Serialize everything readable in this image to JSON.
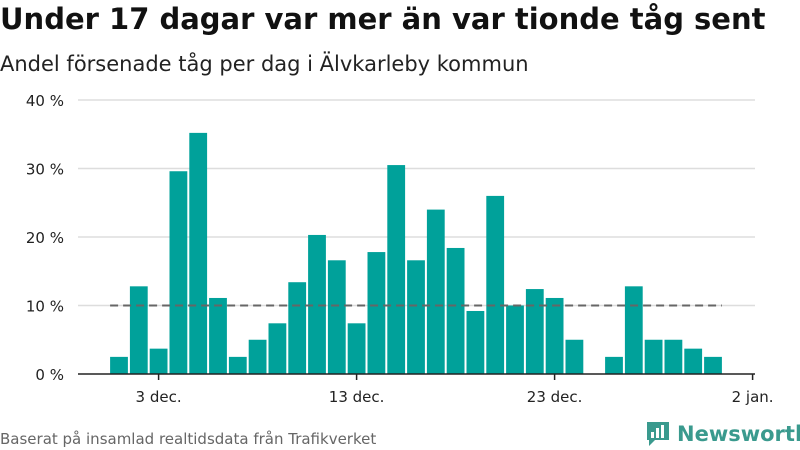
{
  "header": {
    "title": "Under 17 dagar var mer än var tionde tåg sent",
    "subtitle": "Andel försenade tåg per dag i Älvkarleby kommun"
  },
  "footer": {
    "source": "Baserat på insamlad realtidsdata från Trafikverket",
    "brand": "Newsworthy"
  },
  "colors": {
    "bar": "#00a19a",
    "reference_line": "#666666",
    "grid": "#dddddd",
    "axis": "#222222",
    "brand": "#3a9a8e"
  },
  "chart_data": {
    "type": "bar",
    "title": "Under 17 dagar var mer än var tionde tåg sent",
    "subtitle": "Andel försenade tåg per dag i Älvkarleby kommun",
    "xlabel": "",
    "ylabel": "",
    "x": [
      "2018-12-01",
      "2018-12-02",
      "2018-12-03",
      "2018-12-04",
      "2018-12-05",
      "2018-12-06",
      "2018-12-07",
      "2018-12-08",
      "2018-12-09",
      "2018-12-10",
      "2018-12-11",
      "2018-12-12",
      "2018-12-13",
      "2018-12-14",
      "2018-12-15",
      "2018-12-16",
      "2018-12-17",
      "2018-12-18",
      "2018-12-19",
      "2018-12-20",
      "2018-12-21",
      "2018-12-22",
      "2018-12-23",
      "2018-12-24",
      "2018-12-25",
      "2018-12-26",
      "2018-12-27",
      "2018-12-28",
      "2018-12-29",
      "2018-12-30",
      "2018-12-31"
    ],
    "values": [
      2.5,
      12.8,
      3.7,
      29.6,
      35.2,
      11.1,
      2.5,
      5.0,
      7.4,
      13.4,
      20.3,
      16.6,
      7.4,
      17.8,
      30.5,
      16.6,
      24.0,
      18.4,
      9.2,
      26.0,
      10.0,
      12.4,
      11.1,
      5.0,
      0,
      2.5,
      12.8,
      5.0,
      5.0,
      3.7,
      2.5
    ],
    "reference_line": {
      "value": 10
    },
    "ylim": [
      0,
      40
    ],
    "yticks": [
      0,
      10,
      20,
      30,
      40
    ],
    "ytick_labels": [
      "0 %",
      "10 %",
      "20 %",
      "30 %",
      "40 %"
    ],
    "xticks": [
      {
        "date": "2018-12-03",
        "label": "3 dec."
      },
      {
        "date": "2018-12-13",
        "label": "13 dec."
      },
      {
        "date": "2018-12-23",
        "label": "23 dec."
      },
      {
        "date": "2019-01-02",
        "label": "2 jan."
      }
    ],
    "grid": true,
    "legend": "none"
  }
}
